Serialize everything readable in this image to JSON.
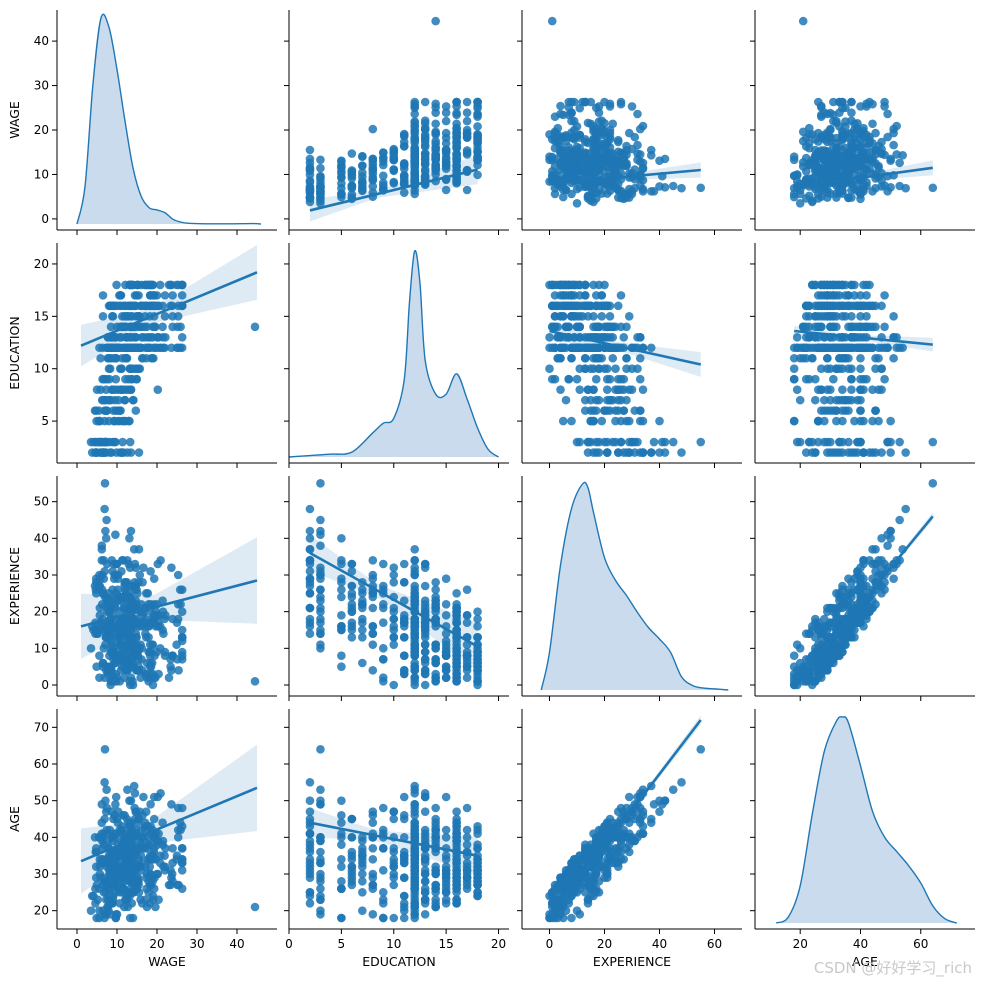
{
  "chart_data": {
    "type": "scatter",
    "kind": "pairplot",
    "variables": [
      "WAGE",
      "EDUCATION",
      "EXPERIENCE",
      "AGE"
    ],
    "diag_kind": "kde",
    "offdiag_kind": "reg",
    "color": "#1f77b4",
    "fill_color": "#c6d9ec",
    "axes": {
      "WAGE": {
        "lim": [
          -5,
          50
        ],
        "ticks": [
          0,
          10,
          20,
          30,
          40
        ],
        "y_lim": [
          -2.5,
          47
        ],
        "y_ticks": [
          0,
          10,
          20,
          30,
          40
        ]
      },
      "EDUCATION": {
        "lim": [
          0,
          21
        ],
        "ticks": [
          0,
          5,
          10,
          15,
          20
        ],
        "y_lim": [
          1,
          22
        ],
        "y_ticks": [
          5,
          10,
          15,
          20
        ]
      },
      "EXPERIENCE": {
        "lim": [
          -10,
          70
        ],
        "ticks": [
          0,
          20,
          40,
          60
        ],
        "y_lim": [
          -3,
          57
        ],
        "y_ticks": [
          0,
          10,
          20,
          30,
          40,
          50
        ]
      },
      "AGE": {
        "lim": [
          5,
          78
        ],
        "ticks": [
          20,
          40,
          60
        ],
        "y_lim": [
          15,
          75
        ],
        "y_ticks": [
          20,
          30,
          40,
          50,
          60,
          70
        ]
      }
    },
    "regressions": {
      "WAGE|EDUCATION": {
        "x": [
          2,
          18
        ],
        "y": [
          1.9,
          11.1
        ],
        "band": 2.5
      },
      "WAGE|EXPERIENCE": {
        "x": [
          0,
          55
        ],
        "y": [
          7.9,
          11.0
        ],
        "band": 1.3
      },
      "WAGE|AGE": {
        "x": [
          18,
          64
        ],
        "y": [
          7.2,
          11.5
        ],
        "band": 1.3
      },
      "EDUCATION|WAGE": {
        "x": [
          1,
          45
        ],
        "y": [
          12.2,
          19.2
        ],
        "band": 2.0
      },
      "EDUCATION|EXPERIENCE": {
        "x": [
          0,
          55
        ],
        "y": [
          13.6,
          10.4
        ],
        "band": 0.9
      },
      "EDUCATION|AGE": {
        "x": [
          18,
          64
        ],
        "y": [
          13.6,
          12.3
        ],
        "band": 0.5
      },
      "EXPERIENCE|WAGE": {
        "x": [
          1,
          45
        ],
        "y": [
          16.0,
          28.5
        ],
        "band": 9.0
      },
      "EXPERIENCE|EDUCATION": {
        "x": [
          2,
          18
        ],
        "y": [
          36.0,
          10.5
        ],
        "band": 5.0
      },
      "EXPERIENCE|AGE": {
        "x": [
          18,
          64
        ],
        "y": [
          0.0,
          46.0
        ],
        "band": 0.8
      },
      "AGE|WAGE": {
        "x": [
          1,
          45
        ],
        "y": [
          33.5,
          53.5
        ],
        "band": 9.0
      },
      "AGE|EDUCATION": {
        "x": [
          2,
          18
        ],
        "y": [
          44.0,
          35.0
        ],
        "band": 4.0
      },
      "AGE|EXPERIENCE": {
        "x": [
          0,
          55
        ],
        "y": [
          18.0,
          72.0
        ],
        "band": 1.0
      }
    },
    "kde": {
      "WAGE": {
        "x": [
          0,
          2,
          4,
          6,
          8,
          10,
          12,
          14,
          16,
          18,
          20,
          22,
          24,
          26,
          28,
          32,
          38,
          44,
          46
        ],
        "density": [
          0.0,
          8,
          30,
          44,
          42,
          33,
          22,
          12,
          6,
          3.5,
          3.0,
          2.4,
          1.0,
          0.4,
          0.15,
          0.05,
          0.05,
          0.1,
          0.0
        ]
      },
      "EDUCATION": {
        "x": [
          0,
          2,
          4,
          6,
          8,
          9,
          10,
          11,
          11.5,
          12,
          12.5,
          13,
          14,
          15,
          16,
          17,
          18,
          19,
          20
        ],
        "density": [
          0.0,
          0.15,
          0.3,
          0.5,
          2.5,
          3.5,
          4.0,
          8,
          16,
          21.3,
          18,
          10,
          6.5,
          6.5,
          8.6,
          6,
          3,
          0.8,
          0.0
        ]
      },
      "EXPERIENCE": {
        "x": [
          -3,
          0,
          4,
          8,
          12,
          14,
          16,
          20,
          24,
          28,
          32,
          36,
          40,
          44,
          48,
          52,
          56,
          60,
          65
        ],
        "density": [
          0.0,
          10,
          33,
          48,
          54.5,
          53.5,
          47,
          35,
          29,
          25,
          20.5,
          16.5,
          13.5,
          10,
          3.5,
          1.2,
          0.5,
          0.3,
          0.0
        ]
      },
      "AGE": {
        "x": [
          12,
          16,
          20,
          24,
          28,
          32,
          34,
          36,
          40,
          44,
          48,
          52,
          56,
          60,
          64,
          68,
          72
        ],
        "density": [
          0.0,
          2,
          13,
          38,
          60,
          70.5,
          72,
          70,
          55,
          39,
          30,
          25,
          20,
          14,
          6,
          1.5,
          0.0
        ]
      }
    },
    "outlier": {
      "WAGE": 44.5,
      "EDUCATION": 14,
      "EXPERIENCE": 1,
      "AGE": 21
    }
  },
  "watermark": "CSDN @好好学习_rich"
}
